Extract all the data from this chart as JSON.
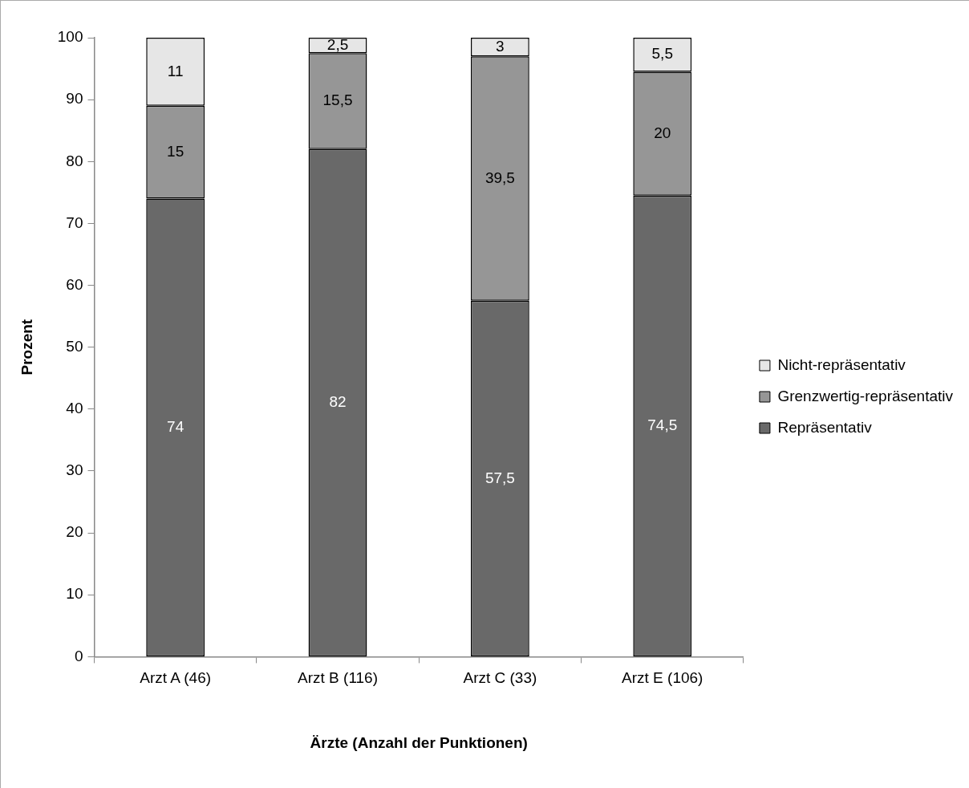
{
  "chart_data": {
    "type": "bar",
    "stacked": true,
    "xlabel": "Ärzte (Anzahl der Punktionen)",
    "ylabel": "Prozent",
    "categories": [
      "Arzt A (46)",
      "Arzt B (116)",
      "Arzt C (33)",
      "Arzt E (106)"
    ],
    "series": [
      {
        "name": "Repräsentativ",
        "color": "#696969",
        "values": [
          74,
          82,
          57.5,
          74.5
        ],
        "value_labels": [
          "74",
          "82",
          "57,5",
          "74,5"
        ]
      },
      {
        "name": "Grenzwertig-repräsentativ",
        "color": "#969696",
        "values": [
          15,
          15.5,
          39.5,
          20
        ],
        "value_labels": [
          "15",
          "15,5",
          "39,5",
          "20"
        ]
      },
      {
        "name": "Nicht-repräsentativ",
        "color": "#e6e6e6",
        "values": [
          11,
          2.5,
          3,
          5.5
        ],
        "value_labels": [
          "11",
          "2,5",
          "3",
          "5,5"
        ]
      }
    ],
    "ylim": [
      0,
      100
    ],
    "yticks": [
      0,
      10,
      20,
      30,
      40,
      50,
      60,
      70,
      80,
      90,
      100
    ],
    "grid": false,
    "legend": "right"
  }
}
